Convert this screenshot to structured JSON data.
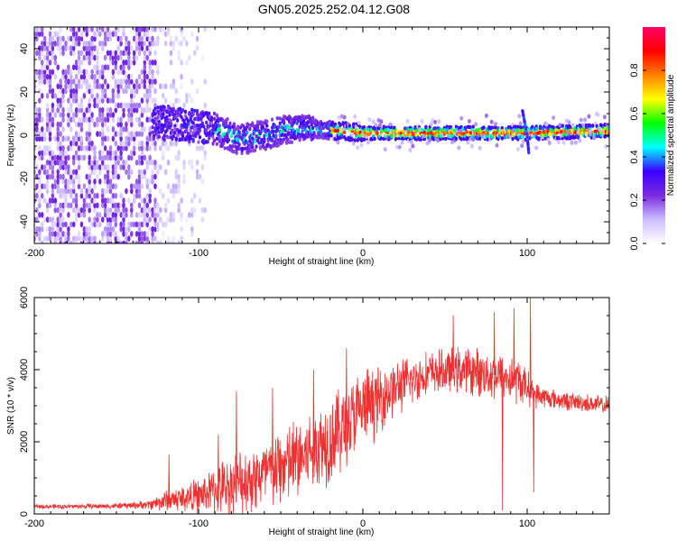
{
  "title": "GN05.2025.252.04.12.G08",
  "chart_data": [
    {
      "type": "heatmap",
      "xlabel": "Height of straight line (km)",
      "ylabel": "Frequency (Hz)",
      "xlim": [
        -200,
        150
      ],
      "ylim": [
        -50,
        50
      ],
      "x_ticks": [
        -200,
        -100,
        0,
        100
      ],
      "y_ticks": [
        -40,
        -20,
        0,
        20,
        40
      ],
      "colorbar": {
        "label": "Normalized spectral amplitude",
        "range": [
          0,
          1
        ],
        "ticks": [
          "0.0",
          "0.2",
          "0.4",
          "0.6",
          "0.8"
        ],
        "ticks_values": [
          0,
          0.2,
          0.4,
          0.6,
          0.8
        ],
        "colors": [
          "#ffffff",
          "#cdbdff",
          "#7a2be0",
          "#3a00ff",
          "#00ffff",
          "#00ff00",
          "#ffff00",
          "#ff8000",
          "#ff0000",
          "#ff0066"
        ]
      },
      "features": {
        "noise_region_x": [
          -200,
          -95
        ],
        "noise_dense_until_x": -125,
        "signal_start_x": -128,
        "band_center_hz": [
          {
            "x": -128,
            "y": 6
          },
          {
            "x": -110,
            "y": 5
          },
          {
            "x": -90,
            "y": 3
          },
          {
            "x": -75,
            "y": -2
          },
          {
            "x": -60,
            "y": 0
          },
          {
            "x": -45,
            "y": 3
          },
          {
            "x": -30,
            "y": 3
          },
          {
            "x": -15,
            "y": 2
          },
          {
            "x": 0,
            "y": 1
          },
          {
            "x": 50,
            "y": 1
          },
          {
            "x": 100,
            "y": 1
          },
          {
            "x": 150,
            "y": 2
          }
        ],
        "spike_x": 100
      }
    },
    {
      "type": "line",
      "xlabel": "Height of straight line (km)",
      "ylabel": "SNR (10 * v/v)",
      "xlim": [
        -200,
        150
      ],
      "ylim": [
        0,
        6000
      ],
      "x_ticks": [
        -200,
        -100,
        0,
        100
      ],
      "y_ticks": [
        0,
        2000,
        4000,
        6000
      ],
      "color": "#ef3030",
      "envelope": [
        {
          "x": -200,
          "mean": 200,
          "amp": 70
        },
        {
          "x": -150,
          "mean": 220,
          "amp": 90
        },
        {
          "x": -130,
          "mean": 260,
          "amp": 150
        },
        {
          "x": -120,
          "mean": 380,
          "amp": 350
        },
        {
          "x": -100,
          "mean": 500,
          "amp": 550
        },
        {
          "x": -80,
          "mean": 800,
          "amp": 1000
        },
        {
          "x": -60,
          "mean": 1100,
          "amp": 1200
        },
        {
          "x": -40,
          "mean": 1500,
          "amp": 1400
        },
        {
          "x": -20,
          "mean": 2100,
          "amp": 1500
        },
        {
          "x": 0,
          "mean": 2900,
          "amp": 1300
        },
        {
          "x": 20,
          "mean": 3500,
          "amp": 900
        },
        {
          "x": 40,
          "mean": 3900,
          "amp": 700
        },
        {
          "x": 60,
          "mean": 4000,
          "amp": 750
        },
        {
          "x": 80,
          "mean": 3850,
          "amp": 800
        },
        {
          "x": 95,
          "mean": 3700,
          "amp": 750
        },
        {
          "x": 105,
          "mean": 3300,
          "amp": 400
        },
        {
          "x": 120,
          "mean": 3150,
          "amp": 300
        },
        {
          "x": 150,
          "mean": 3000,
          "amp": 300
        }
      ],
      "spikes": [
        {
          "x": -118,
          "y": 1650
        },
        {
          "x": -88,
          "y": 2200
        },
        {
          "x": -77,
          "y": 3400
        },
        {
          "x": -55,
          "y": 3500
        },
        {
          "x": -30,
          "y": 4000
        },
        {
          "x": -10,
          "y": 4600
        },
        {
          "x": 55,
          "y": 5500
        },
        {
          "x": 80,
          "y": 5600
        },
        {
          "x": 85,
          "y": 100
        },
        {
          "x": 92,
          "y": 5700
        },
        {
          "x": 102,
          "y": 6000
        },
        {
          "x": 104,
          "y": 600
        }
      ]
    }
  ]
}
